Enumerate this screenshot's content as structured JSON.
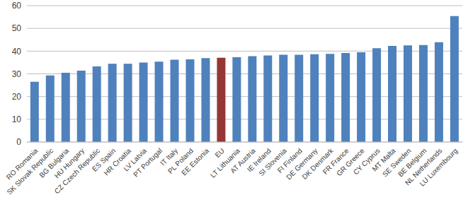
{
  "chart_data": {
    "type": "bar",
    "categories": [
      "RO Romania",
      "SK Slovak Republic",
      "BG Bulgaria",
      "HU Hungary",
      "CZ Czech Republic",
      "ES Spain",
      "HR Croatia",
      "LV Latvia",
      "PT Portugal",
      "IT Italy",
      "PL Poland",
      "EE Estonia",
      "EU",
      "LT Lithuania",
      "AT Austria",
      "IE Ireland",
      "SI Slovenia",
      "FI Finland",
      "DE Germany",
      "DK Denmark",
      "FR France",
      "GR Greece",
      "CY Cyprus",
      "MT Malta",
      "SE Sweden",
      "BE Belgium",
      "NL Netherlands",
      "LU Luxembourg"
    ],
    "values": [
      26.5,
      29.3,
      30.5,
      31.4,
      33.3,
      34.4,
      34.4,
      35,
      35.4,
      36.2,
      36.4,
      36.9,
      37.1,
      37.3,
      37.8,
      38.1,
      38.4,
      38.4,
      38.6,
      38.8,
      39.2,
      39.5,
      41.3,
      42.3,
      42.5,
      42.7,
      43.9,
      55.4
    ],
    "colors": [
      "#4f81bd",
      "#4f81bd",
      "#4f81bd",
      "#4f81bd",
      "#4f81bd",
      "#4f81bd",
      "#4f81bd",
      "#4f81bd",
      "#4f81bd",
      "#4f81bd",
      "#4f81bd",
      "#4f81bd",
      "#953735",
      "#4f81bd",
      "#4f81bd",
      "#4f81bd",
      "#4f81bd",
      "#4f81bd",
      "#4f81bd",
      "#4f81bd",
      "#4f81bd",
      "#4f81bd",
      "#4f81bd",
      "#4f81bd",
      "#4f81bd",
      "#4f81bd",
      "#4f81bd",
      "#4f81bd"
    ],
    "ylim": [
      0,
      60
    ],
    "yticks": [
      0,
      10,
      20,
      30,
      40,
      50,
      60
    ],
    "grid": true
  }
}
